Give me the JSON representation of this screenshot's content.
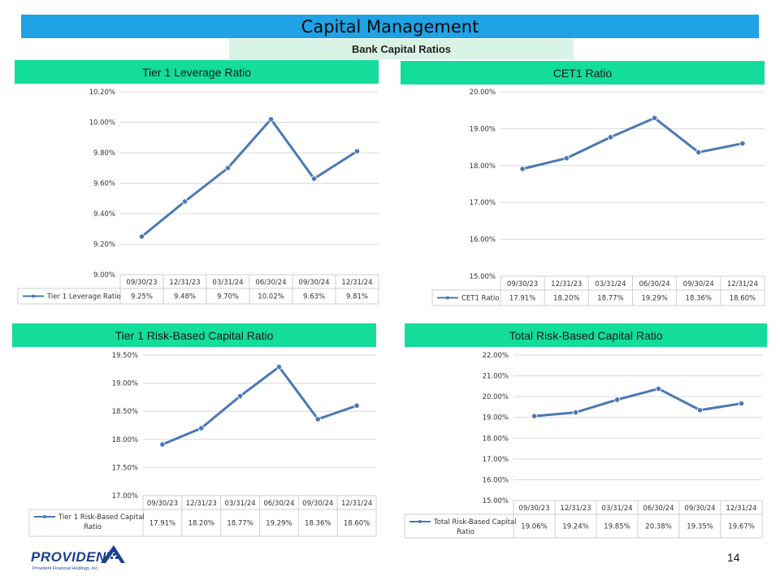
{
  "header": {
    "title": "Capital Management",
    "subtitle": "Bank Capital Ratios",
    "title_color": "#1fa2e6",
    "subtitle_color": "#d9f2e6",
    "panel_color": "#14dc9a"
  },
  "panels": [
    {
      "title": "Tier 1 Leverage Ratio"
    },
    {
      "title": "CET1 Ratio"
    },
    {
      "title": "Tier 1 Risk-Based Capital Ratio"
    },
    {
      "title": "Total Risk-Based Capital Ratio"
    }
  ],
  "chart_data": [
    {
      "type": "line",
      "title": "Tier 1 Leverage Ratio",
      "categories": [
        "09/30/23",
        "12/31/23",
        "03/31/24",
        "06/30/24",
        "09/30/24",
        "12/31/24"
      ],
      "series": [
        {
          "name": "Tier 1 Leverage Ratio",
          "values": [
            9.25,
            9.48,
            9.7,
            10.02,
            9.63,
            9.81
          ],
          "labels": [
            "9.25%",
            "9.48%",
            "9.70%",
            "10.02%",
            "9.63%",
            "9.81%"
          ]
        }
      ],
      "yticks": [
        "9.00%",
        "9.20%",
        "9.40%",
        "9.60%",
        "9.80%",
        "10.00%",
        "10.20%"
      ],
      "ylim": [
        9.0,
        10.2
      ],
      "line_color": "#4a78b5"
    },
    {
      "type": "line",
      "title": "CET1 Ratio",
      "categories": [
        "09/30/23",
        "12/31/23",
        "03/31/24",
        "06/30/24",
        "09/30/24",
        "12/31/24"
      ],
      "series": [
        {
          "name": "CET1 Ratio",
          "values": [
            17.91,
            18.2,
            18.77,
            19.29,
            18.36,
            18.6
          ],
          "labels": [
            "17.91%",
            "18.20%",
            "18.77%",
            "19.29%",
            "18.36%",
            "18.60%"
          ]
        }
      ],
      "yticks": [
        "15.00%",
        "16.00%",
        "17.00%",
        "18.00%",
        "19.00%",
        "20.00%"
      ],
      "ylim": [
        15.0,
        20.0
      ],
      "line_color": "#4a78b5"
    },
    {
      "type": "line",
      "title": "Tier 1 Risk-Based Capital Ratio",
      "categories": [
        "09/30/23",
        "12/31/23",
        "03/31/24",
        "06/30/24",
        "09/30/24",
        "12/31/24"
      ],
      "series": [
        {
          "name": "Tier 1 Risk-Based Capital Ratio",
          "values": [
            17.91,
            18.2,
            18.77,
            19.29,
            18.36,
            18.6
          ],
          "labels": [
            "17.91%",
            "18.20%",
            "18.77%",
            "19.29%",
            "18.36%",
            "18.60%"
          ]
        }
      ],
      "yticks": [
        "17.00%",
        "17.50%",
        "18.00%",
        "18.50%",
        "19.00%",
        "19.50%"
      ],
      "ylim": [
        17.0,
        19.5
      ],
      "line_color": "#4a78b5"
    },
    {
      "type": "line",
      "title": "Total Risk-Based Capital Ratio",
      "categories": [
        "09/30/23",
        "12/31/23",
        "03/31/24",
        "06/30/24",
        "09/30/24",
        "12/31/24"
      ],
      "series": [
        {
          "name": "Total Risk-Based Capital Ratio",
          "values": [
            19.06,
            19.24,
            19.85,
            20.38,
            19.35,
            19.67
          ],
          "labels": [
            "19.06%",
            "19.24%",
            "19.85%",
            "20.38%",
            "19.35%",
            "19.67%"
          ]
        }
      ],
      "yticks": [
        "15.00%",
        "16.00%",
        "17.00%",
        "18.00%",
        "19.00%",
        "20.00%",
        "21.00%",
        "22.00%"
      ],
      "ylim": [
        15.0,
        22.0
      ],
      "line_color": "#4a78b5"
    }
  ],
  "footer": {
    "logo_text": "PROVIDENT",
    "logo_subtext": "Provident Financial Holdings, Inc.",
    "page_number": "14"
  }
}
